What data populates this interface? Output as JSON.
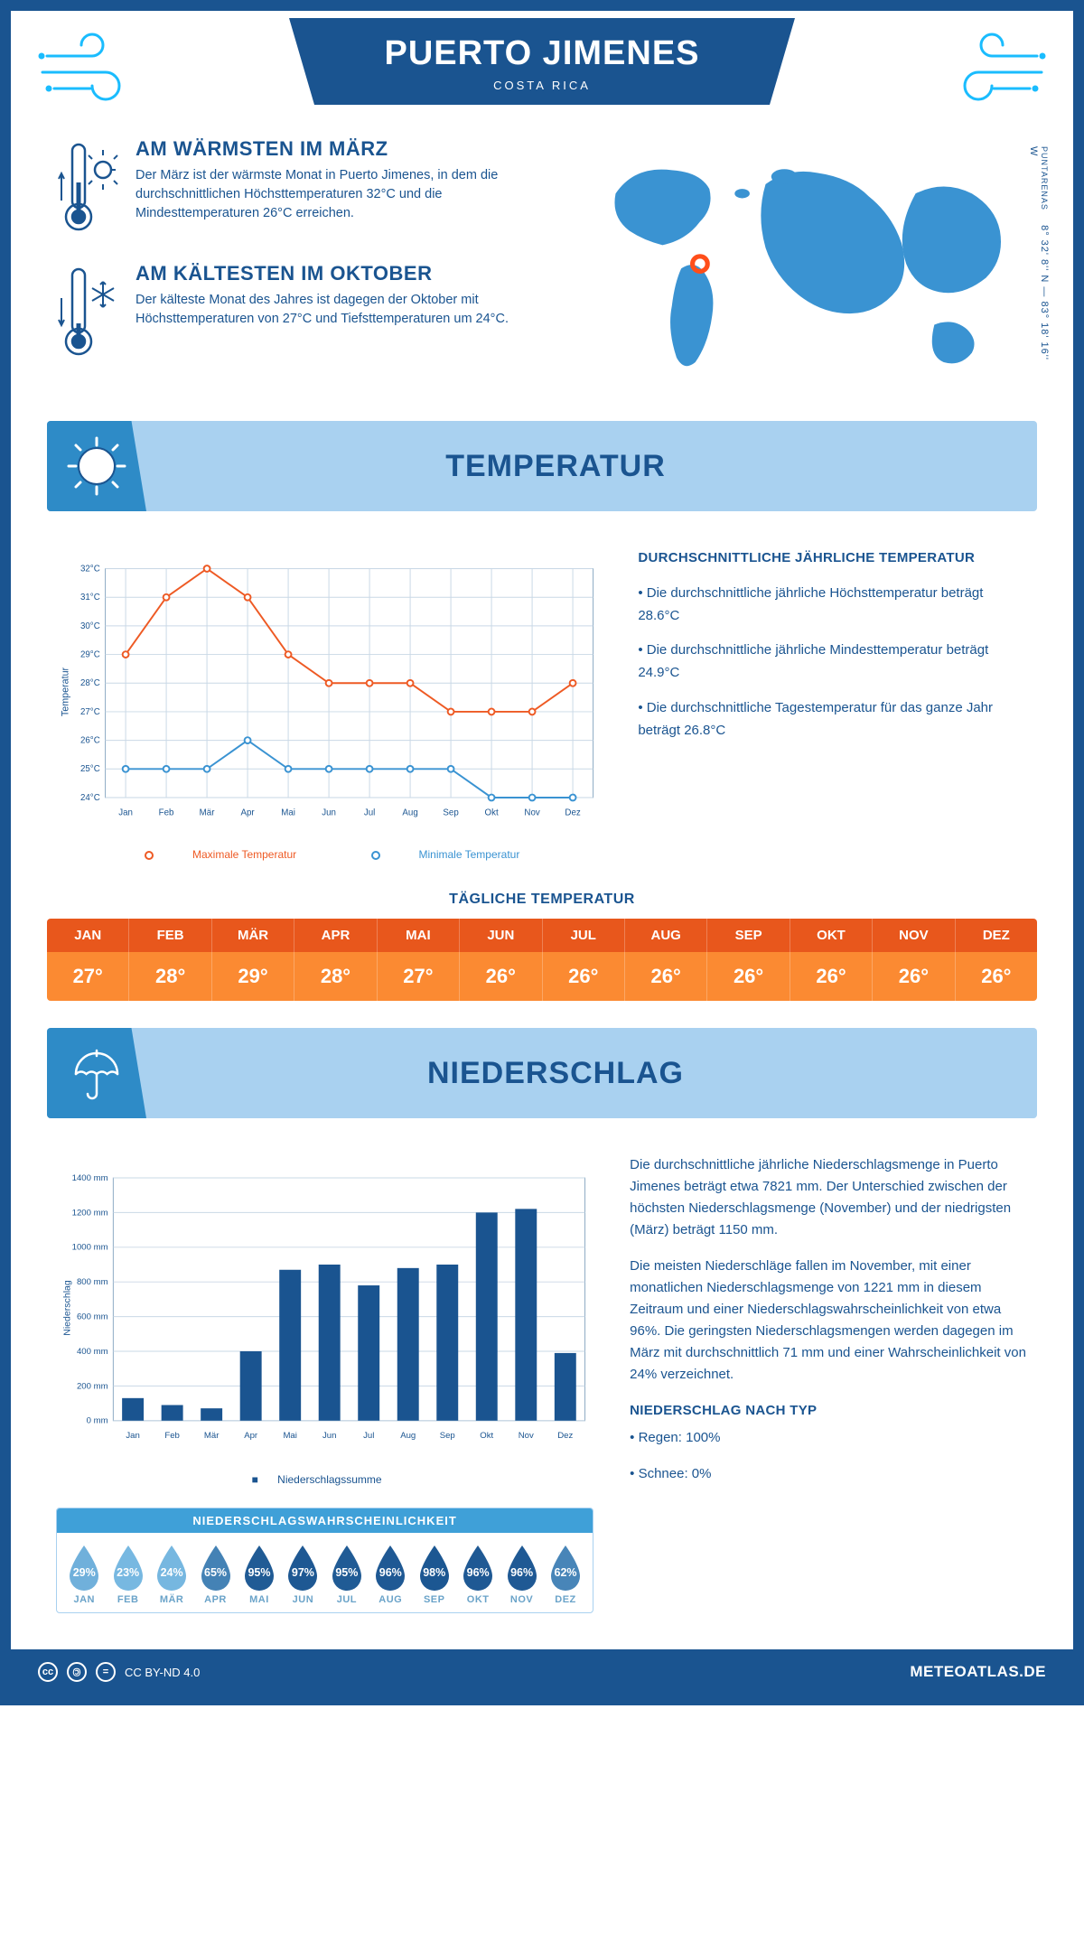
{
  "header": {
    "title": "PUERTO JIMENES",
    "subtitle": "COSTA RICA"
  },
  "intro": {
    "warm": {
      "heading": "AM WÄRMSTEN IM MÄRZ",
      "text": "Der März ist der wärmste Monat in Puerto Jimenes, in dem die durchschnittlichen Höchsttemperaturen 32°C und die Mindesttemperaturen 26°C erreichen."
    },
    "cold": {
      "heading": "AM KÄLTESTEN IM OKTOBER",
      "text": "Der kälteste Monat des Jahres ist dagegen der Oktober mit Höchsttemperaturen von 27°C und Tiefsttemperaturen um 24°C."
    },
    "coords_line1": "8° 32' 8'' N — 83° 18' 16'' W",
    "coords_line2": "PUNTARENAS",
    "map": {
      "marker_left_pct": 27,
      "marker_top_pct": 52,
      "land_color": "#3a93d2",
      "marker_color": "#ff4e1a"
    }
  },
  "sections": {
    "temperature_title": "TEMPERATUR",
    "precip_title": "NIEDERSCHLAG"
  },
  "months": [
    "Jan",
    "Feb",
    "Mär",
    "Apr",
    "Mai",
    "Jun",
    "Jul",
    "Aug",
    "Sep",
    "Okt",
    "Nov",
    "Dez"
  ],
  "months_upper": [
    "JAN",
    "FEB",
    "MÄR",
    "APR",
    "MAI",
    "JUN",
    "JUL",
    "AUG",
    "SEP",
    "OKT",
    "NOV",
    "DEZ"
  ],
  "temp_chart": {
    "ylabel": "Temperatur",
    "y_ticks": [
      24,
      25,
      26,
      27,
      28,
      29,
      30,
      31,
      32
    ],
    "y_tick_labels": [
      "24°C",
      "25°C",
      "26°C",
      "27°C",
      "28°C",
      "29°C",
      "30°C",
      "31°C",
      "32°C"
    ],
    "max_series": [
      29,
      31,
      32,
      31,
      29,
      28,
      28,
      28,
      27,
      27,
      27,
      28
    ],
    "min_series": [
      25,
      25,
      25,
      26,
      25,
      25,
      25,
      25,
      25,
      24,
      24,
      24
    ],
    "max_color": "#ee5a24",
    "min_color": "#3a93d2",
    "grid_color": "#c9d8e6",
    "legend_max": "Maximale Temperatur",
    "legend_min": "Minimale Temperatur"
  },
  "temp_info": {
    "heading": "DURCHSCHNITTLICHE JÄHRLICHE TEMPERATUR",
    "bullets": [
      "• Die durchschnittliche jährliche Höchsttemperatur beträgt 28.6°C",
      "• Die durchschnittliche jährliche Mindesttemperatur beträgt 24.9°C",
      "• Die durchschnittliche Tagestemperatur für das ganze Jahr beträgt 26.8°C"
    ]
  },
  "daily": {
    "title": "TÄGLICHE TEMPERATUR",
    "values": [
      "27°",
      "28°",
      "29°",
      "28°",
      "27°",
      "26°",
      "26°",
      "26°",
      "26°",
      "26°",
      "26°",
      "26°"
    ],
    "head_bg": "#e8571c",
    "body_bg": "#fb8a32"
  },
  "precip_chart": {
    "ylabel": "Niederschlag",
    "y_ticks": [
      0,
      200,
      400,
      600,
      800,
      1000,
      1200,
      1400
    ],
    "y_tick_labels": [
      "0 mm",
      "200 mm",
      "400 mm",
      "600 mm",
      "800 mm",
      "1000 mm",
      "1200 mm",
      "1400 mm"
    ],
    "values": [
      130,
      90,
      71,
      400,
      870,
      900,
      780,
      880,
      900,
      1200,
      1221,
      390
    ],
    "bar_color": "#1a5490",
    "grid_color": "#c9d8e6",
    "legend": "Niederschlagssumme"
  },
  "precip_info": {
    "p1": "Die durchschnittliche jährliche Niederschlagsmenge in Puerto Jimenes beträgt etwa 7821 mm. Der Unterschied zwischen der höchsten Niederschlagsmenge (November) und der niedrigsten (März) beträgt 1150 mm.",
    "p2": "Die meisten Niederschläge fallen im November, mit einer monatlichen Niederschlagsmenge von 1221 mm in diesem Zeitraum und einer Niederschlagswahrscheinlichkeit von etwa 96%. Die geringsten Niederschlagsmengen werden dagegen im März mit durchschnittlich 71 mm und einer Wahrscheinlichkeit von 24% verzeichnet.",
    "type_heading": "NIEDERSCHLAG NACH TYP",
    "type_bullets": [
      "• Regen: 100%",
      "• Schnee: 0%"
    ]
  },
  "probability": {
    "title": "NIEDERSCHLAGSWAHRSCHEINLICHKEIT",
    "values": [
      29,
      23,
      24,
      65,
      95,
      97,
      95,
      96,
      98,
      96,
      96,
      62
    ],
    "color_low": "#7bbce4",
    "color_high": "#1a5490"
  },
  "footer": {
    "license": "CC BY-ND 4.0",
    "site": "METEOATLAS.DE"
  },
  "colors": {
    "primary": "#1a5490",
    "lightblue": "#a9d1f0",
    "midblue": "#2e8bc7"
  }
}
